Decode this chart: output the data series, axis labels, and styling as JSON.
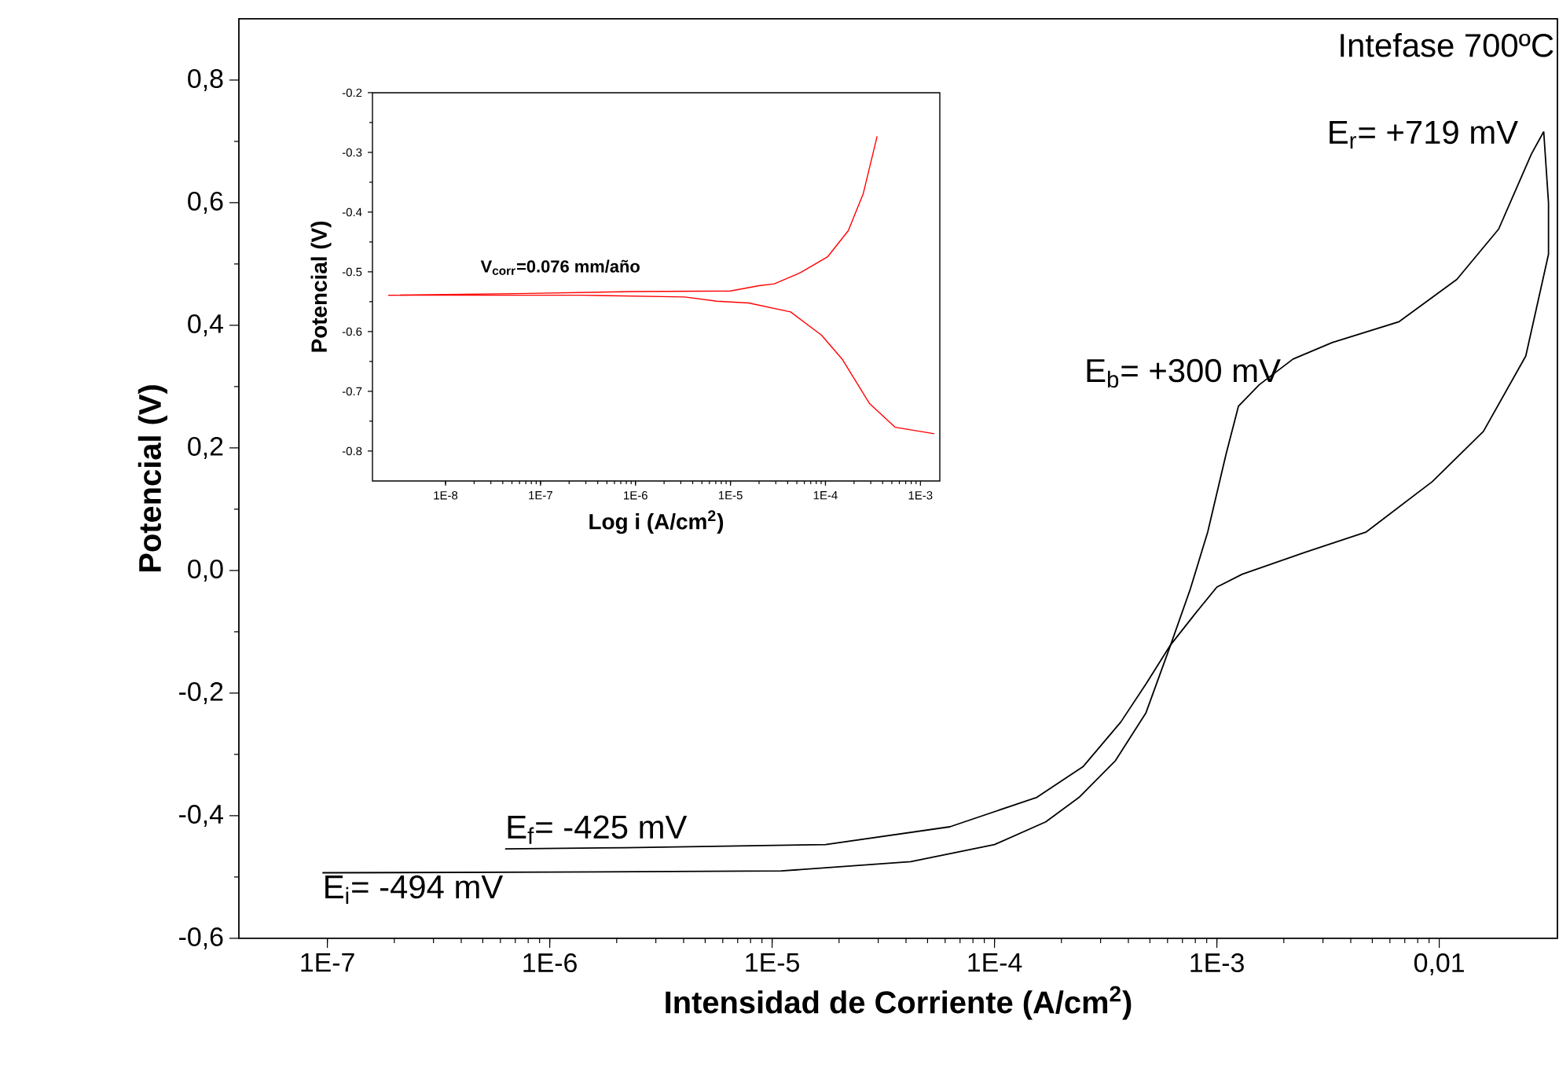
{
  "chart_data": [
    {
      "type": "line",
      "xlabel": "Intensidad de Corriente (A/cm$^{2}$)",
      "ylabel": "Potencial (V)",
      "log": "x",
      "xlim": [
        4e-08,
        0.034
      ],
      "ylim": [
        -0.6,
        0.9
      ],
      "xticks": [
        {
          "value": 1e-07,
          "label": "1E-7"
        },
        {
          "value": 1e-06,
          "label": "1E-6"
        },
        {
          "value": 1e-05,
          "label": "1E-5"
        },
        {
          "value": 0.0001,
          "label": "1E-4"
        },
        {
          "value": 0.001,
          "label": "1E-3"
        },
        {
          "value": 0.01,
          "label": "0,01"
        }
      ],
      "yticks": [
        {
          "value": -0.6,
          "label": "-0,6"
        },
        {
          "value": -0.4,
          "label": "-0,4"
        },
        {
          "value": -0.2,
          "label": "-0,2"
        },
        {
          "value": 0,
          "label": "0,0"
        },
        {
          "value": 0.2,
          "label": "0,2"
        },
        {
          "value": 0.4,
          "label": "0,4"
        },
        {
          "value": 0.6,
          "label": "0,6"
        },
        {
          "value": 0.8,
          "label": "0,8"
        }
      ],
      "series": [
        {
          "color": "#000000",
          "x": [
            9.5e-08,
            1e-06,
            1.1e-05,
            4.2e-05,
            0.0001,
            0.00017,
            0.00024,
            0.00035,
            0.00048,
            0.00062,
            0.00076,
            0.00091,
            0.0011,
            0.00125,
            0.00155,
            0.0022,
            0.0033,
            0.0066,
            0.012,
            0.0185,
            0.026,
            0.0295
          ],
          "values": [
            -0.493,
            -0.492,
            -0.49,
            -0.475,
            -0.447,
            -0.41,
            -0.37,
            -0.31,
            -0.232,
            -0.121,
            -0.03,
            0.063,
            0.19,
            0.268,
            0.303,
            0.345,
            0.372,
            0.406,
            0.475,
            0.557,
            0.68,
            0.716
          ]
        },
        {
          "color": "#000000",
          "x": [
            0.0295,
            0.031,
            0.031,
            0.0245,
            0.0158,
            0.0093,
            0.0047,
            0.0025,
            0.0013,
            0.001,
            0.0008,
            0.00062,
            0.00048,
            0.00037,
            0.00025,
            0.000155,
            6.3e-05,
            1.74e-05,
            2.2e-06,
            6.3e-07
          ],
          "values": [
            0.716,
            0.6,
            0.516,
            0.35,
            0.227,
            0.145,
            0.063,
            0.03,
            -0.006,
            -0.027,
            -0.07,
            -0.121,
            -0.185,
            -0.247,
            -0.32,
            -0.37,
            -0.418,
            -0.447,
            -0.452,
            -0.454
          ]
        }
      ],
      "annotations": [
        "Intefase 700ºC",
        {
          "text": "E$_{r}$= +719 mV",
          "x": 0.0295,
          "y": 0.719
        },
        {
          "text": "E$_{b}$= +300 mV",
          "x": 0.00155,
          "y": 0.303
        },
        {
          "text": "E$_{f}$= -425 mV",
          "x": 6.3e-07,
          "y": -0.454
        },
        {
          "text": "E$_{i}$= -494 mV",
          "x": 9.5e-08,
          "y": -0.494
        }
      ]
    },
    {
      "type": "line",
      "xlabel": "Log i (A/cm$^{2}$)",
      "ylabel": "Potencial (V)",
      "log": "x",
      "xlim": [
        1.7e-09,
        0.0016
      ],
      "ylim": [
        -0.85,
        -0.2
      ],
      "xticks": [
        {
          "value": 1e-08,
          "label": "1E-8"
        },
        {
          "value": 1e-07,
          "label": "1E-7"
        },
        {
          "value": 1e-06,
          "label": "1E-6"
        },
        {
          "value": 1e-05,
          "label": "1E-5"
        },
        {
          "value": 0.0001,
          "label": "1E-4"
        },
        {
          "value": 0.001,
          "label": "1E-3"
        }
      ],
      "yticks": [
        -0.8,
        -0.7,
        -0.6,
        -0.5,
        -0.4,
        -0.3,
        -0.2
      ],
      "series": [
        {
          "color": "#ff0000",
          "x": [
            2.5e-09,
            7.4e-08,
            9.3e-07,
            1e-05,
            2e-05,
            2.9e-05,
            5.5e-05,
            0.000105,
            0.000174,
            0.00025,
            0.00035
          ],
          "values": [
            -0.539,
            -0.536,
            -0.533,
            -0.532,
            -0.523,
            -0.52,
            -0.501,
            -0.475,
            -0.431,
            -0.369,
            -0.273
          ]
        },
        {
          "color": "#ff0000",
          "x": [
            2.5e-09,
            2.6e-07,
            3.3e-06,
            7.2e-06,
            1.55e-05,
            4.3e-05,
            9.1e-05,
            0.00015,
            0.00029,
            0.00054,
            0.0014
          ],
          "values": [
            -0.539,
            -0.539,
            -0.542,
            -0.549,
            -0.552,
            -0.567,
            -0.606,
            -0.646,
            -0.72,
            -0.76,
            -0.771
          ]
        }
      ],
      "annotations": [
        "V$_{corr}$=0.076 mm/año"
      ]
    }
  ]
}
